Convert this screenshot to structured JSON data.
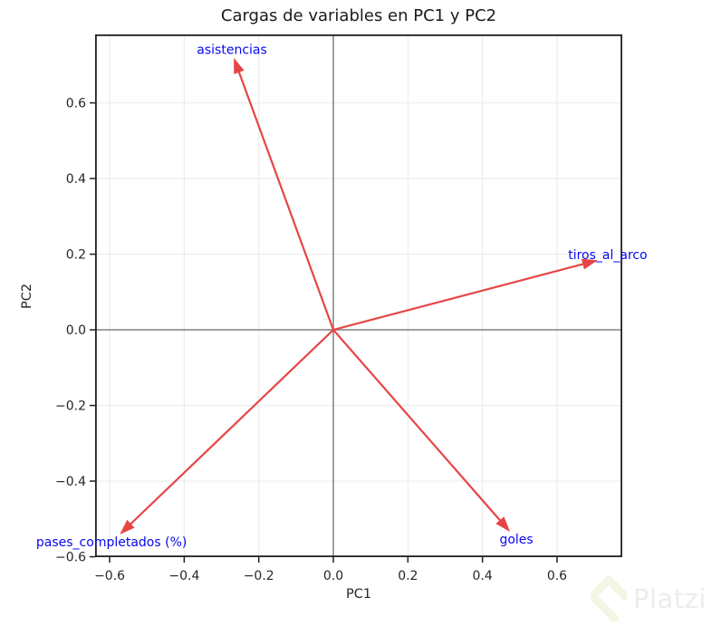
{
  "watermark": {
    "brand": "Platzi",
    "logo_color": "#f2f6e4",
    "text_color": "#ececec"
  },
  "chart_data": {
    "type": "scatter",
    "variant": "pca_loading_arrows",
    "title": "Cargas de variables en PC1 y PC2",
    "xlabel": "PC1",
    "ylabel": "PC2",
    "xlim": [
      -0.639,
      0.775
    ],
    "ylim": [
      -0.601,
      0.781
    ],
    "grid": true,
    "zero_lines": true,
    "legend": false,
    "xticks": [
      {
        "v": -0.6,
        "label": "−0.6"
      },
      {
        "v": -0.4,
        "label": "−0.4"
      },
      {
        "v": -0.2,
        "label": "−0.2"
      },
      {
        "v": 0.0,
        "label": "0.0"
      },
      {
        "v": 0.2,
        "label": "0.2"
      },
      {
        "v": 0.4,
        "label": "0.4"
      },
      {
        "v": 0.6,
        "label": "0.6"
      }
    ],
    "yticks": [
      {
        "v": -0.6,
        "label": "−0.6"
      },
      {
        "v": -0.4,
        "label": "−0.4"
      },
      {
        "v": -0.2,
        "label": "−0.2"
      },
      {
        "v": 0.0,
        "label": "0.0"
      },
      {
        "v": 0.2,
        "label": "0.2"
      },
      {
        "v": 0.4,
        "label": "0.4"
      },
      {
        "v": 0.6,
        "label": "0.6"
      }
    ],
    "arrows": [
      {
        "label": "asistencias",
        "pc1": -0.267,
        "pc2": 0.719,
        "label_pos": [
          -0.272,
          0.742
        ]
      },
      {
        "label": "tiros_al_arco",
        "pc1": 0.709,
        "pc2": 0.184,
        "label_pos": [
          0.736,
          0.199
        ]
      },
      {
        "label": "pases_completados (%)",
        "pc1": -0.573,
        "pc2": -0.541,
        "label_pos": [
          -0.595,
          -0.56
        ]
      },
      {
        "label": "goles",
        "pc1": 0.474,
        "pc2": -0.534,
        "label_pos": [
          0.491,
          -0.553
        ]
      }
    ],
    "colors": {
      "arrow": "#e64545",
      "variable_label": "#0808f0",
      "grid": "#e9e9e9",
      "zero_line": "#8a8a8a",
      "spine": "#202020",
      "tick_label": "#262626",
      "title": "#1a1a1a"
    }
  }
}
